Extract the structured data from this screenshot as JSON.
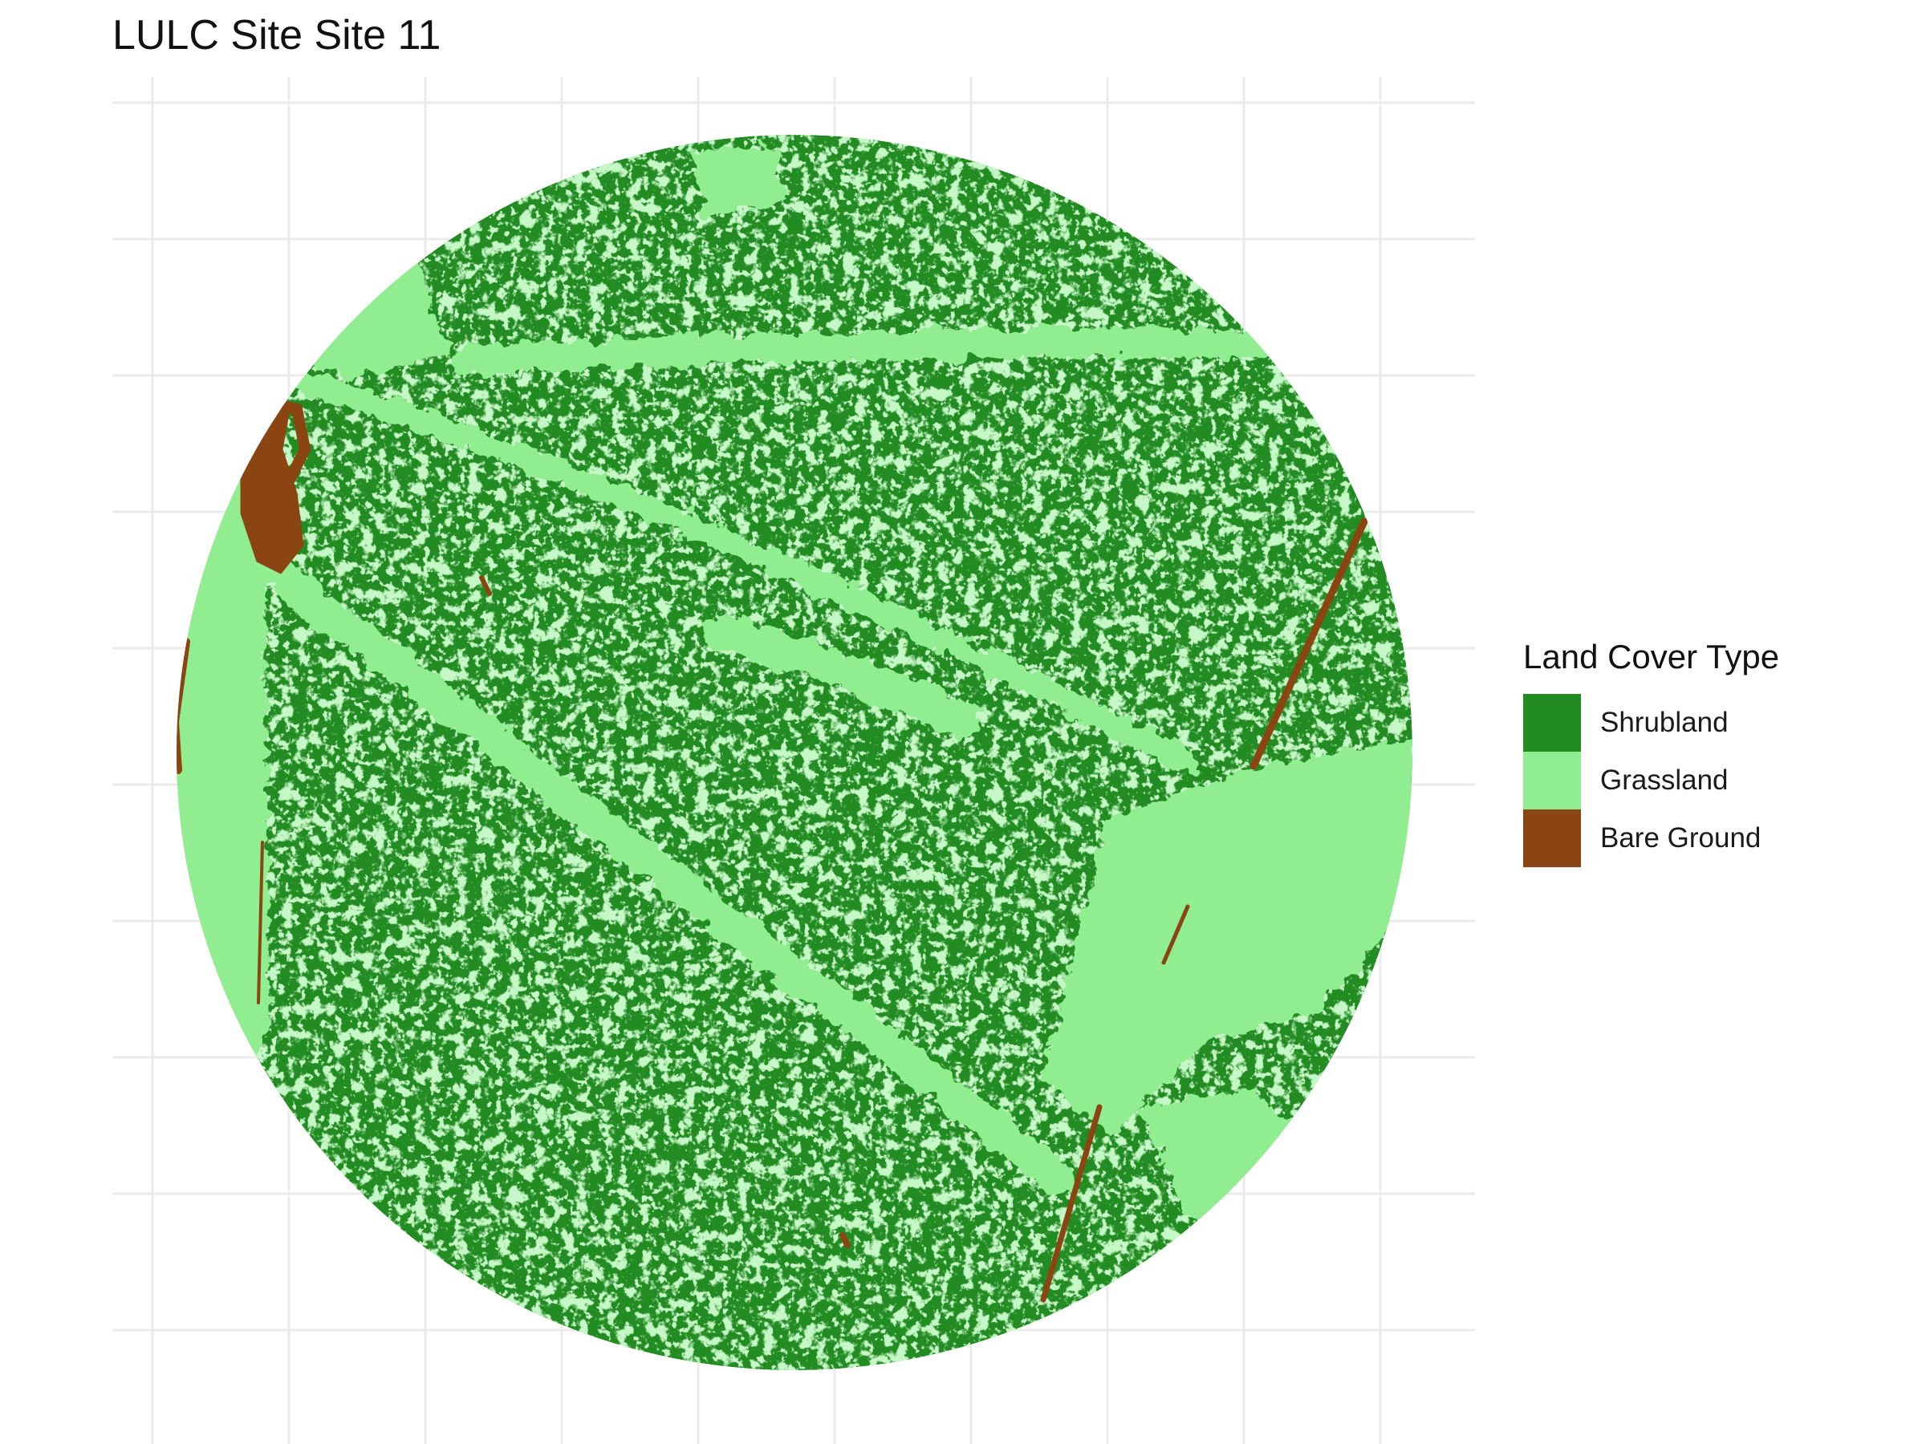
{
  "title": "LULC Site Site 11",
  "legend": {
    "title": "Land Cover Type",
    "items": [
      {
        "label": "Shrubland",
        "color": "#228B22",
        "icon": "swatch-shrubland"
      },
      {
        "label": "Grassland",
        "color": "#90EE90",
        "icon": "swatch-grassland"
      },
      {
        "label": "Bare Ground",
        "color": "#8B4513",
        "icon": "swatch-bare-ground"
      }
    ]
  },
  "map": {
    "type": "raster-land-cover",
    "extent_shape": "circle",
    "background_class": "Shrubland",
    "grid": true,
    "axis_tick_labels_shown": false,
    "grid_color": "#EBEBEB",
    "panel_background": "#FFFFFF",
    "legend_position": "right"
  }
}
